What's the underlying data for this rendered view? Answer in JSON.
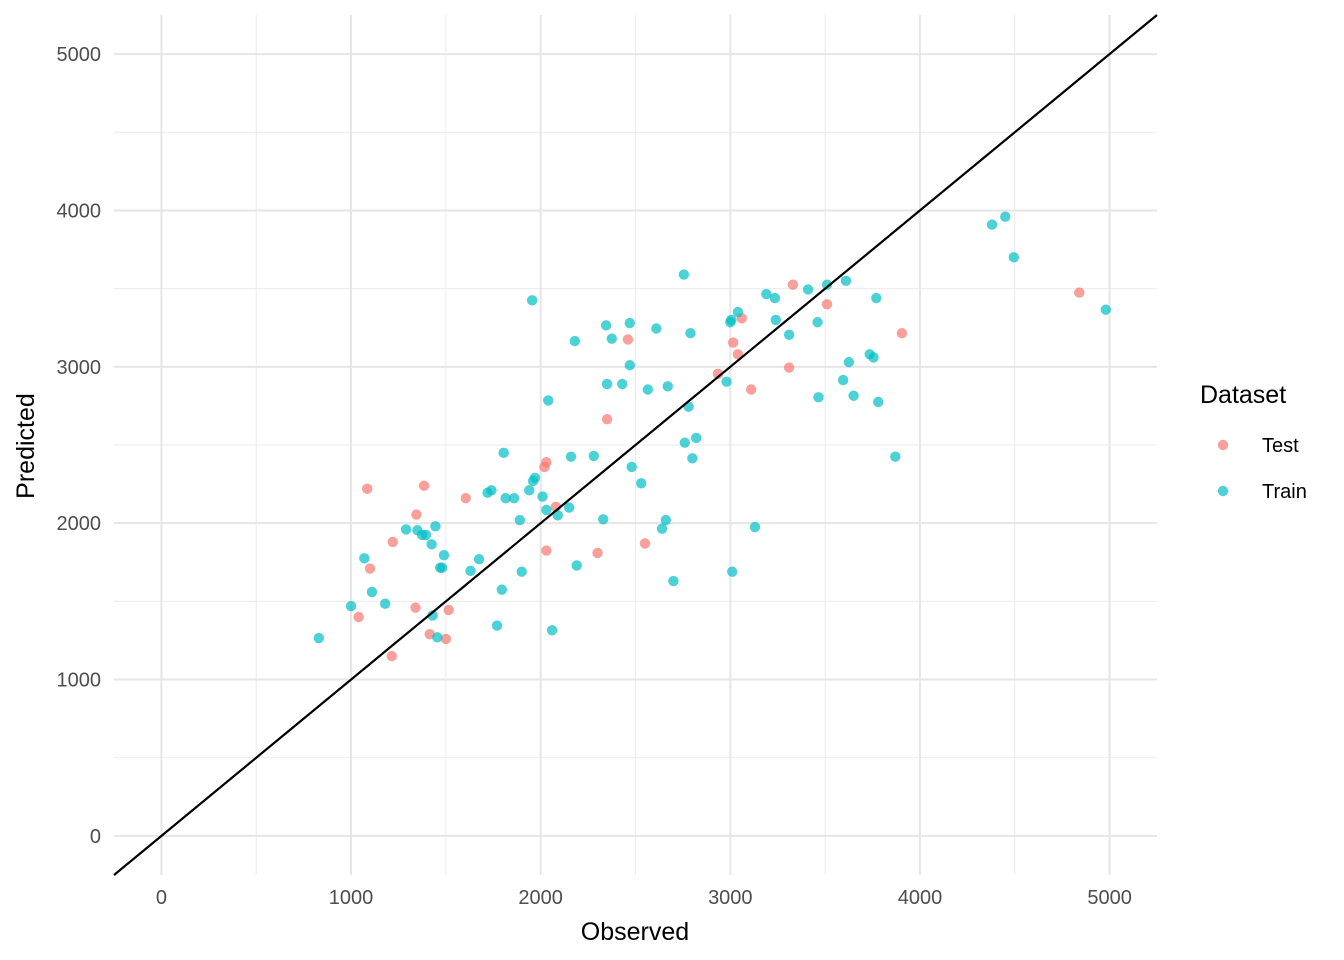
{
  "chart_data": {
    "type": "scatter",
    "title": "",
    "xlabel": "Observed",
    "ylabel": "Predicted",
    "xlim": [
      -250,
      5250
    ],
    "ylim": [
      -250,
      5250
    ],
    "x_ticks": [
      0,
      1000,
      2000,
      3000,
      4000,
      5000
    ],
    "y_ticks": [
      0,
      1000,
      2000,
      3000,
      4000,
      5000
    ],
    "x_tick_labels": [
      "0",
      "1000",
      "2000",
      "3000",
      "4000",
      "5000"
    ],
    "y_tick_labels": [
      "0",
      "1000",
      "2000",
      "3000",
      "4000",
      "5000"
    ],
    "grid": true,
    "reference_line": {
      "type": "identity",
      "slope": 1,
      "intercept": 0,
      "color": "#000000"
    },
    "legend": {
      "title": "Dataset",
      "placement": "right"
    },
    "series": [
      {
        "name": "Test",
        "color": "#F8766D",
        "points": [
          [
            1040,
            1400
          ],
          [
            1085,
            2220
          ],
          [
            1100,
            1710
          ],
          [
            1220,
            1880
          ],
          [
            1215,
            1150
          ],
          [
            1340,
            1460
          ],
          [
            1345,
            2055
          ],
          [
            1385,
            2240
          ],
          [
            1415,
            1290
          ],
          [
            1500,
            1260
          ],
          [
            1515,
            1445
          ],
          [
            1605,
            2160
          ],
          [
            2020,
            2360
          ],
          [
            2030,
            2390
          ],
          [
            2030,
            1825
          ],
          [
            2080,
            2105
          ],
          [
            2300,
            1810
          ],
          [
            2350,
            2665
          ],
          [
            2460,
            3175
          ],
          [
            2550,
            1870
          ],
          [
            2935,
            2955
          ],
          [
            3015,
            3155
          ],
          [
            3040,
            3080
          ],
          [
            3060,
            3310
          ],
          [
            3110,
            2855
          ],
          [
            3310,
            2995
          ],
          [
            3330,
            3525
          ],
          [
            3510,
            3400
          ],
          [
            3905,
            3215
          ],
          [
            4840,
            3475
          ]
        ]
      },
      {
        "name": "Train",
        "color": "#00BFC4",
        "points": [
          [
            830,
            1265
          ],
          [
            1000,
            1470
          ],
          [
            1070,
            1775
          ],
          [
            1110,
            1560
          ],
          [
            1180,
            1485
          ],
          [
            1290,
            1960
          ],
          [
            1350,
            1955
          ],
          [
            1375,
            1925
          ],
          [
            1395,
            1925
          ],
          [
            1425,
            1865
          ],
          [
            1430,
            1410
          ],
          [
            1445,
            1980
          ],
          [
            1455,
            1270
          ],
          [
            1470,
            1715
          ],
          [
            1480,
            1715
          ],
          [
            1490,
            1795
          ],
          [
            1630,
            1695
          ],
          [
            1675,
            1770
          ],
          [
            1720,
            2195
          ],
          [
            1740,
            2210
          ],
          [
            1770,
            1345
          ],
          [
            1795,
            1575
          ],
          [
            1805,
            2450
          ],
          [
            1815,
            2160
          ],
          [
            1860,
            2160
          ],
          [
            1890,
            2020
          ],
          [
            1900,
            1690
          ],
          [
            1940,
            2210
          ],
          [
            1955,
            3425
          ],
          [
            1960,
            2270
          ],
          [
            1970,
            2290
          ],
          [
            2010,
            2170
          ],
          [
            2030,
            2085
          ],
          [
            2040,
            2785
          ],
          [
            2060,
            1315
          ],
          [
            2090,
            2050
          ],
          [
            2150,
            2100
          ],
          [
            2160,
            2425
          ],
          [
            2180,
            3165
          ],
          [
            2190,
            1730
          ],
          [
            2280,
            2430
          ],
          [
            2330,
            2025
          ],
          [
            2345,
            3265
          ],
          [
            2350,
            2890
          ],
          [
            2375,
            3180
          ],
          [
            2430,
            2890
          ],
          [
            2470,
            3010
          ],
          [
            2470,
            3280
          ],
          [
            2480,
            2360
          ],
          [
            2530,
            2255
          ],
          [
            2565,
            2855
          ],
          [
            2610,
            3245
          ],
          [
            2640,
            1965
          ],
          [
            2660,
            2020
          ],
          [
            2670,
            2875
          ],
          [
            2700,
            1630
          ],
          [
            2755,
            3590
          ],
          [
            2760,
            2515
          ],
          [
            2780,
            2745
          ],
          [
            2790,
            3215
          ],
          [
            2800,
            2415
          ],
          [
            2820,
            2545
          ],
          [
            2980,
            2905
          ],
          [
            3000,
            3285
          ],
          [
            3005,
            3300
          ],
          [
            3010,
            1690
          ],
          [
            3040,
            3350
          ],
          [
            3130,
            1975
          ],
          [
            3190,
            3465
          ],
          [
            3235,
            3440
          ],
          [
            3240,
            3300
          ],
          [
            3310,
            3205
          ],
          [
            3410,
            3495
          ],
          [
            3460,
            3285
          ],
          [
            3465,
            2805
          ],
          [
            3510,
            3525
          ],
          [
            3595,
            2915
          ],
          [
            3610,
            3550
          ],
          [
            3625,
            3030
          ],
          [
            3650,
            2815
          ],
          [
            3735,
            3080
          ],
          [
            3755,
            3060
          ],
          [
            3770,
            3440
          ],
          [
            3780,
            2775
          ],
          [
            3870,
            2425
          ],
          [
            4380,
            3910
          ],
          [
            4450,
            3960
          ],
          [
            4495,
            3700
          ],
          [
            4980,
            3365
          ]
        ]
      }
    ]
  }
}
